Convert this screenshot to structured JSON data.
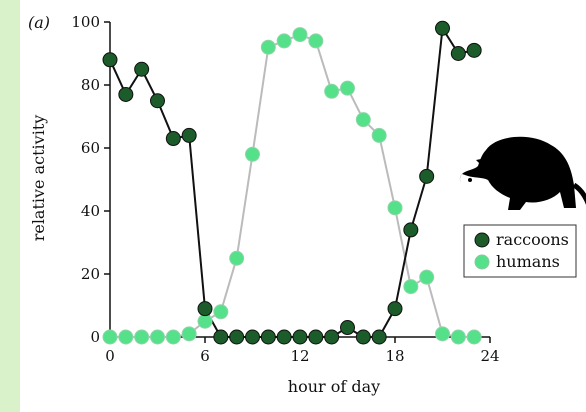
{
  "chart_data": {
    "type": "line",
    "panel_label": "(a)",
    "title": "",
    "xlabel": "hour of day",
    "ylabel": "relative activity",
    "xlim": [
      0,
      24
    ],
    "ylim": [
      0,
      100
    ],
    "xticks": [
      0,
      6,
      12,
      18,
      24
    ],
    "yticks": [
      0,
      20,
      40,
      60,
      80,
      100
    ],
    "grid": false,
    "legend_position": "right",
    "x": [
      0,
      1,
      2,
      3,
      4,
      5,
      6,
      7,
      8,
      9,
      10,
      11,
      12,
      13,
      14,
      15,
      16,
      17,
      18,
      19,
      20,
      21,
      22,
      23
    ],
    "series": [
      {
        "name": "raccoons",
        "line_color": "#111111",
        "marker_color": "#1c5b2a",
        "values": [
          88,
          77,
          85,
          75,
          63,
          64,
          9,
          0,
          0,
          0,
          0,
          0,
          0,
          0,
          0,
          3,
          0,
          0,
          9,
          34,
          51,
          98,
          90,
          91
        ]
      },
      {
        "name": "humans",
        "line_color": "#bbbbbb",
        "marker_color": "#55e08a",
        "values": [
          0,
          0,
          0,
          0,
          0,
          1,
          5,
          8,
          25,
          58,
          92,
          94,
          96,
          94,
          78,
          79,
          69,
          64,
          41,
          16,
          19,
          1,
          0,
          0
        ]
      }
    ],
    "icon": "raccoon-silhouette-icon"
  }
}
